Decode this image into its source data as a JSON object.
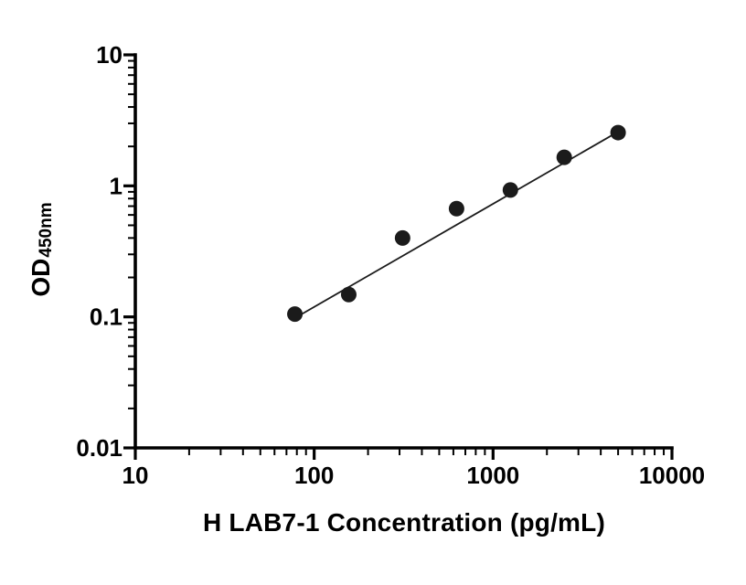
{
  "chart_data": {
    "type": "scatter",
    "title": "",
    "xlabel": "H LAB7-1 Concentration (pg/mL)",
    "ylabel": "OD",
    "ylabel_sub": "450nm",
    "x_scale": "log",
    "y_scale": "log",
    "xlim": [
      10,
      10000
    ],
    "ylim": [
      0.01,
      10
    ],
    "x_ticks": [
      10,
      100,
      1000,
      10000
    ],
    "x_tick_labels": [
      "10",
      "100",
      "1000",
      "10000"
    ],
    "y_ticks": [
      0.01,
      0.1,
      1,
      10
    ],
    "y_tick_labels": [
      "0.01",
      "0.1",
      "1",
      "10"
    ],
    "grid": false,
    "legend": "none",
    "points": [
      {
        "x": 78,
        "y": 0.105
      },
      {
        "x": 156,
        "y": 0.148
      },
      {
        "x": 312,
        "y": 0.4
      },
      {
        "x": 625,
        "y": 0.67
      },
      {
        "x": 1250,
        "y": 0.93
      },
      {
        "x": 2500,
        "y": 1.65
      },
      {
        "x": 5000,
        "y": 2.55
      }
    ],
    "trend_line": {
      "x1": 75,
      "y1": 0.095,
      "x2": 5150,
      "y2": 2.65
    },
    "marker": {
      "shape": "circle",
      "color": "#1b1b1b",
      "radius": 8.5
    },
    "line_color": "#1b1b1b",
    "axis_color": "#000000"
  }
}
